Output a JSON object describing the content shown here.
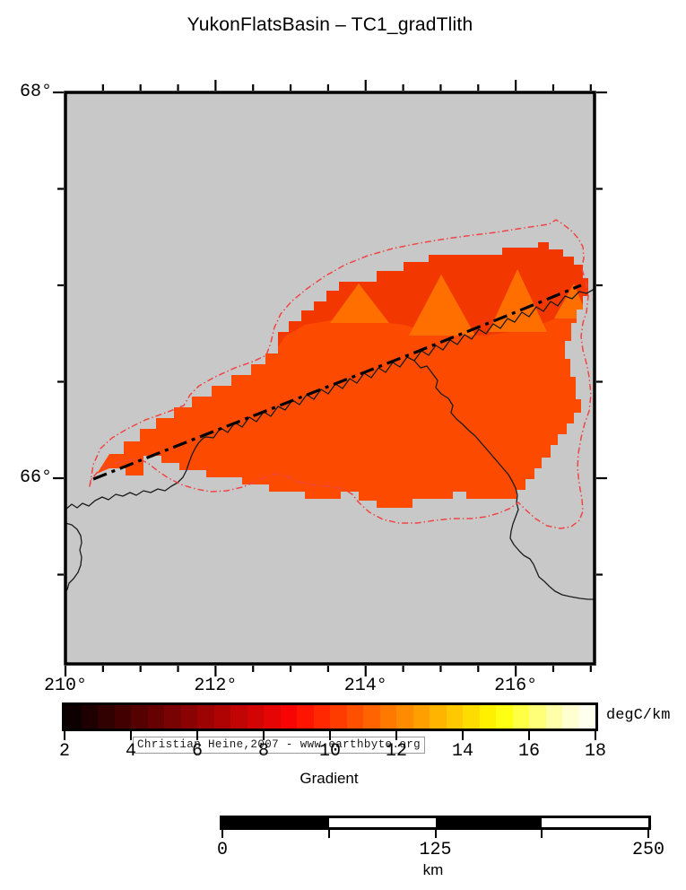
{
  "title": "YukonFlatsBasin – TC1_gradTlith",
  "map": {
    "attribution": "Christian Heine,2007 - www.earthbyte.org",
    "lon_min": 210,
    "lon_max": 217.05,
    "lat_min": 65.04,
    "lat_max": 68,
    "minor_tick_deg": 0.5,
    "major_tick_deg": 2,
    "x_tick_labels": [
      {
        "lon": 210,
        "text": "210°"
      },
      {
        "lon": 212,
        "text": "212°"
      },
      {
        "lon": 214,
        "text": "214°"
      },
      {
        "lon": 216,
        "text": "216°"
      }
    ],
    "y_tick_labels": [
      {
        "lat": 68,
        "text": "68°"
      },
      {
        "lat": 66,
        "text": "66°"
      }
    ],
    "colors": {
      "land_background": "#c8c8c8",
      "basin_fill": "#fc4a00",
      "basin_upper_band": "#f23800",
      "basin_peaks": "#ff6f00",
      "basin_outline_red": "#f04545",
      "river_black": "#1c1c1c",
      "transect_line": "#000000",
      "frame": "#000000"
    }
  },
  "colorbar": {
    "title": "Gradient",
    "unit": "degC/km",
    "min": 2,
    "max": 18,
    "cell_step": 0.5,
    "tick_values": [
      2,
      4,
      6,
      8,
      10,
      12,
      14,
      16,
      18
    ],
    "tick_labels": [
      "2",
      "4",
      "6",
      "8",
      "10",
      "12",
      "14",
      "16",
      "18"
    ],
    "cells": [
      "#0d0000",
      "#1f0000",
      "#310000",
      "#430000",
      "#550101",
      "#670101",
      "#790202",
      "#8b0202",
      "#9d0303",
      "#af0303",
      "#c10404",
      "#d30404",
      "#e50505",
      "#f70505",
      "#ff1400",
      "#ff2800",
      "#ff3c00",
      "#ff5000",
      "#ff6400",
      "#ff7800",
      "#ff8c00",
      "#ffa000",
      "#ffb400",
      "#ffc800",
      "#ffdc00",
      "#fff000",
      "#ffff14",
      "#ffff46",
      "#ffff78",
      "#ffffaa",
      "#ffffd2",
      "#fffff0"
    ]
  },
  "scalebar": {
    "unit": "km",
    "km_min": 0,
    "km_max": 250,
    "segment_km": 62.5,
    "segment_colors": [
      "#000000",
      "#ffffff",
      "#000000",
      "#ffffff"
    ],
    "tick_labels": [
      {
        "km": 0,
        "text": "0"
      },
      {
        "km": 125,
        "text": "125"
      },
      {
        "km": 250,
        "text": "250"
      }
    ],
    "tick_kms": [
      0,
      62.5,
      125,
      187.5,
      250
    ]
  }
}
